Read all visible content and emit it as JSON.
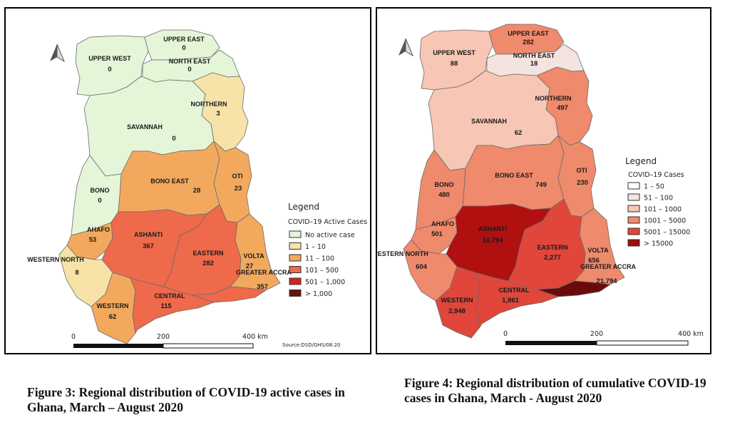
{
  "map1": {
    "legend_title": "Legend",
    "legend_subtitle": "COVID–19 Active Cases",
    "legend_items": [
      {
        "label": "No active case",
        "color": "#e5f5d8"
      },
      {
        "label": "1 – 10",
        "color": "#f7e3a8"
      },
      {
        "label": "11 – 100",
        "color": "#f2a95e"
      },
      {
        "label": "101 – 500",
        "color": "#ee6a4a"
      },
      {
        "label": "501 – 1,000",
        "color": "#d9201f"
      },
      {
        "label": "> 1,000",
        "color": "#6b0f0f"
      }
    ],
    "scale": {
      "zero": "0",
      "mid": "200",
      "end": "400 km"
    },
    "source": "Source:DSD/GHS/08.20",
    "regions": {
      "upper_east": {
        "name": "UPPER EAST",
        "value": "0",
        "color": "#e5f5d8"
      },
      "upper_west": {
        "name": "UPPER WEST",
        "value": "0",
        "color": "#e5f5d8"
      },
      "north_east": {
        "name": "NORTH EAST",
        "value": "0",
        "color": "#e5f5d8"
      },
      "northern": {
        "name": "NORTHERN",
        "value": "3",
        "color": "#f7e3a8"
      },
      "savannah": {
        "name": "SAVANNAH",
        "value": "0",
        "color": "#e5f5d8"
      },
      "bono": {
        "name": "BONO",
        "value": "0",
        "color": "#e5f5d8"
      },
      "bono_east": {
        "name": "BONO EAST",
        "value": "28",
        "color": "#f2a95e"
      },
      "oti": {
        "name": "OTI",
        "value": "23",
        "color": "#f2a95e"
      },
      "ahafo": {
        "name": "AHAFO",
        "value": "53",
        "color": "#f2a95e"
      },
      "ashanti": {
        "name": "ASHANTI",
        "value": "367",
        "color": "#ee6a4a"
      },
      "eastern": {
        "name": "EASTERN",
        "value": "282",
        "color": "#ee6a4a"
      },
      "volta": {
        "name": "VOLTA",
        "value": "27",
        "color": "#f2a95e"
      },
      "western_north": {
        "name": "WESTERN NORTH",
        "value": "8",
        "color": "#f7e3a8"
      },
      "greater_accra": {
        "name": "GREATER ACCRA",
        "value": "357",
        "color": "#ee6a4a"
      },
      "western": {
        "name": "WESTERN",
        "value": "62",
        "color": "#f2a95e"
      },
      "central": {
        "name": "CENTRAL",
        "value": "115",
        "color": "#ee6a4a"
      }
    }
  },
  "map2": {
    "legend_title": "Legend",
    "legend_subtitle": "COVID–19 Cases",
    "legend_items": [
      {
        "label": "1 – 50",
        "color": "#ffffff"
      },
      {
        "label": "51 – 100",
        "color": "#f3e4e0"
      },
      {
        "label": "101 – 1000",
        "color": "#f7c6b4"
      },
      {
        "label": "1001 – 5000",
        "color": "#ef8a6c"
      },
      {
        "label": "5001 – 15000",
        "color": "#e0463a"
      },
      {
        "label": "> 15000",
        "color": "#9c0d0d"
      }
    ],
    "scale": {
      "zero": "0",
      "mid": "200",
      "end": "400 km"
    },
    "regions": {
      "upper_east": {
        "name": "UPPER EAST",
        "value": "282",
        "color": "#ef8a6c"
      },
      "upper_west": {
        "name": "UPPER WEST",
        "value": "88",
        "color": "#f7c6b4"
      },
      "north_east": {
        "name": "NORTH EAST",
        "value": "18",
        "color": "#f3e4e0"
      },
      "northern": {
        "name": "NORTHERN",
        "value": "497",
        "color": "#ef8a6c"
      },
      "savannah": {
        "name": "SAVANNAH",
        "value": "62",
        "color": "#f7c6b4"
      },
      "bono": {
        "name": "BONO",
        "value": "480",
        "color": "#ef8a6c"
      },
      "bono_east": {
        "name": "BONO EAST",
        "value": "749",
        "color": "#ef8a6c"
      },
      "oti": {
        "name": "OTI",
        "value": "230",
        "color": "#ef8a6c"
      },
      "ahafo": {
        "name": "AHAFO",
        "value": "501",
        "color": "#ef8a6c"
      },
      "ashanti": {
        "name": "ASHANTI",
        "value": "10,794",
        "color": "#b01010"
      },
      "eastern": {
        "name": "EASTERN",
        "value": "2,277",
        "color": "#e0463a"
      },
      "volta": {
        "name": "VOLTA",
        "value": "656",
        "color": "#ef8a6c"
      },
      "western_north": {
        "name": "WESTERN NORTH",
        "value": "604",
        "color": "#ef8a6c"
      },
      "greater_accra": {
        "name": "GREATER ACCRA",
        "value": "21,794",
        "color": "#6b0a0a"
      },
      "western": {
        "name": "WESTERN",
        "value": "2,948",
        "color": "#e0463a"
      },
      "central": {
        "name": "CENTRAL",
        "value": "1,861",
        "color": "#e0463a"
      }
    }
  },
  "captions": {
    "fig3": "Figure 3: Regional distribution of COVID-19 active cases in Ghana, March – August 2020",
    "fig4": "Figure 4: Regional distribution of cumulative COVID-19 cases in Ghana, March - August 2020"
  }
}
